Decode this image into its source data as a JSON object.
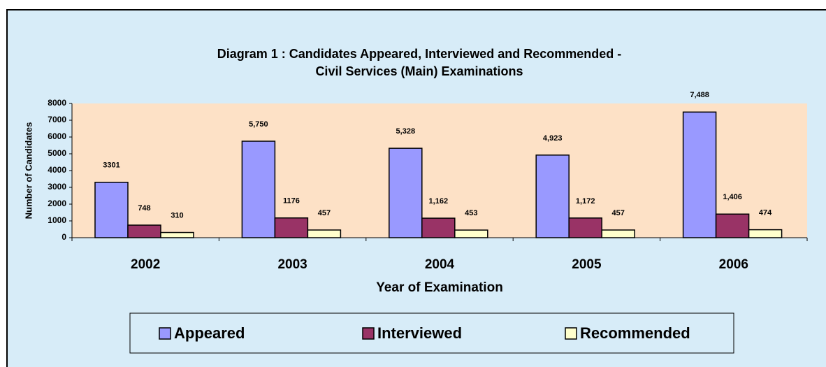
{
  "chart_data": {
    "type": "bar",
    "title": [
      "Diagram 1 : Candidates Appeared, Interviewed and Recommended -",
      "Civil Services (Main) Examinations"
    ],
    "x_label": "Year of Examination",
    "y_label": "Number of Candidates",
    "categories": [
      "2002",
      "2003",
      "2004",
      "2005",
      "2006"
    ],
    "series": [
      {
        "name": "Appeared",
        "color": "#9999ff",
        "values": [
          3301,
          5750,
          5328,
          4923,
          7488
        ],
        "value_labels": [
          "3301",
          "5,750",
          "5,328",
          "4,923",
          "7,488"
        ]
      },
      {
        "name": "Interviewed",
        "color": "#993366",
        "values": [
          748,
          1176,
          1162,
          1172,
          1406
        ],
        "value_labels": [
          "748",
          "1176",
          "1,162",
          "1,172",
          "1,406"
        ]
      },
      {
        "name": "Recommended",
        "color": "#ffffcc",
        "values": [
          310,
          457,
          453,
          457,
          474
        ]
      }
    ],
    "ylim": [
      0,
      8000
    ],
    "yticks": [
      0,
      1000,
      2000,
      3000,
      4000,
      5000,
      6000,
      7000,
      8000
    ],
    "legend": "bottom"
  }
}
